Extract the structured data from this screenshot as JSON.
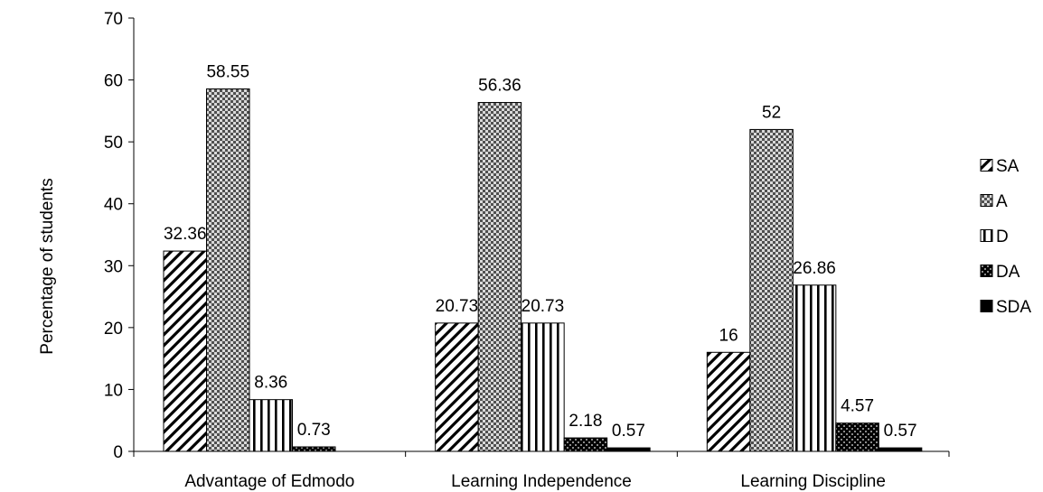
{
  "chart_data": {
    "type": "bar",
    "title": "",
    "xlabel": "",
    "ylabel": "Percentage of students",
    "ylim": [
      0,
      70
    ],
    "yticks": [
      0,
      10,
      20,
      30,
      40,
      50,
      60,
      70
    ],
    "grid": false,
    "legend_position": "right",
    "categories": [
      "Advantage of Edmodo",
      "Learning Independence",
      "Learning Discipline"
    ],
    "series": [
      {
        "name": "SA",
        "pattern": "diagonal-stripes",
        "values": [
          32.36,
          20.73,
          16
        ]
      },
      {
        "name": "A",
        "pattern": "checker-gray",
        "values": [
          58.55,
          56.36,
          52
        ]
      },
      {
        "name": "D",
        "pattern": "vertical-stripes",
        "values": [
          8.36,
          20.73,
          26.86
        ]
      },
      {
        "name": "DA",
        "pattern": "checker-dark",
        "values": [
          0.73,
          2.18,
          4.57
        ]
      },
      {
        "name": "SDA",
        "pattern": "solid-black",
        "values": [
          null,
          0.57,
          0.57
        ]
      }
    ],
    "data_labels": [
      [
        "32.36",
        "58.55",
        "8.36",
        "0.73",
        ""
      ],
      [
        "20.73",
        "56.36",
        "20.73",
        "2.18",
        "0.57"
      ],
      [
        "16",
        "52",
        "26.86",
        "4.57",
        "0.57"
      ]
    ]
  }
}
